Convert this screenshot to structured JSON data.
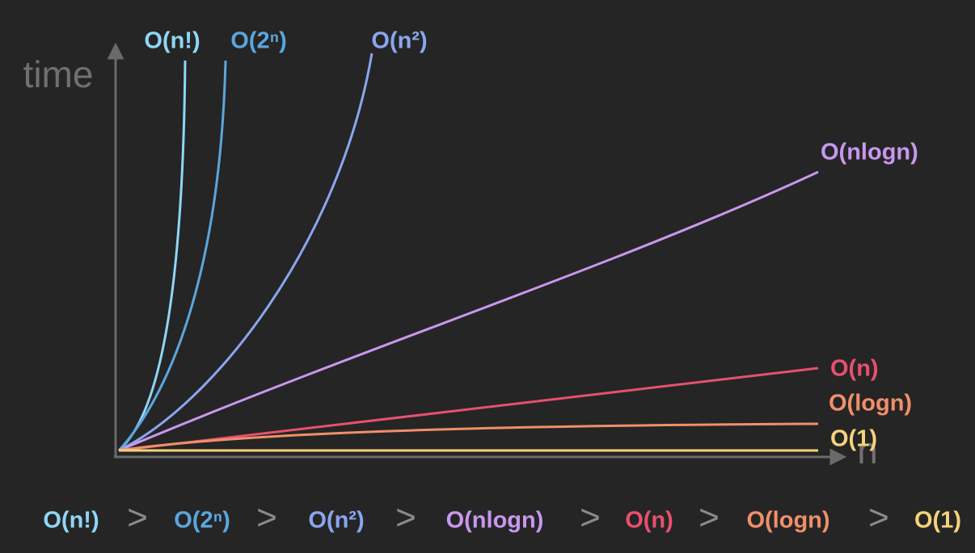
{
  "axes": {
    "y_label": "time",
    "x_label": "n"
  },
  "curves": [
    {
      "label": "O(n!)",
      "color": "#8fd6f6"
    },
    {
      "label": "O(2ⁿ)",
      "color": "#5ba6de"
    },
    {
      "label": "O(n²)",
      "color": "#8aa6f0"
    },
    {
      "label": "O(nlogn)",
      "color": "#c897ee"
    },
    {
      "label": "O(n)",
      "color": "#e8506e"
    },
    {
      "label": "O(logn)",
      "color": "#f08f6a"
    },
    {
      "label": "O(1)",
      "color": "#f6d27c"
    }
  ],
  "ordering": {
    "separator": ">"
  }
}
